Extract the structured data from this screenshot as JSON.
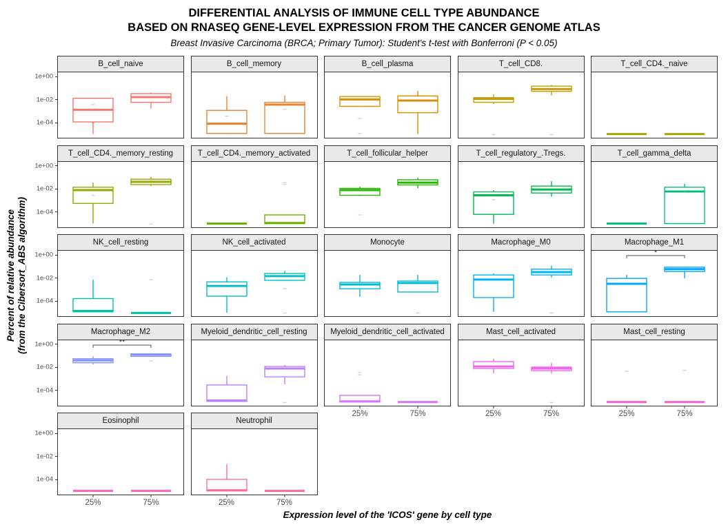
{
  "header": {
    "title_line1": "DIFFERENTIAL ANALYSIS OF IMMUNE CELL TYPE ABUNDANCE",
    "title_line2": "BASED ON RNASEQ GENE-LEVEL EXPRESSION FROM THE CANCER GENOME ATLAS",
    "subtitle": "Breast Invasive Carcinoma (BRCA; Primary Tumor): Student's t-test with Bonferroni (P < 0.05)"
  },
  "axes": {
    "y_label_line1": "Percent of relative abundance",
    "y_label_line2": "(from the Cibersort_ABS algorithm)",
    "x_label": "Expression level of the 'ICOS' gene by cell type",
    "y_tick_labels": [
      "1e+00",
      "1e-02",
      "1e-04"
    ],
    "y_tick_log10": [
      0,
      -2,
      -4
    ],
    "x_tick_labels": [
      "25%",
      "75%"
    ]
  },
  "chart_data": {
    "type": "boxplot",
    "facets": "immune cell types",
    "facet_grid": {
      "columns": 5,
      "rows_layout": [
        5,
        5,
        5,
        5,
        2
      ]
    },
    "x_categories": [
      "25%",
      "75%"
    ],
    "y_scale": "log10",
    "y_axis_ticks": [
      "1e+00",
      "1e-02",
      "1e-04"
    ],
    "values_unit": "log10 of percent relative abundance",
    "panels": [
      {
        "title": "B_cell_naive",
        "color": "#F8766D",
        "significance": null,
        "show_x_axis": false,
        "boxes": [
          {
            "group": "25%",
            "lo": -5.05,
            "q1": -4.0,
            "med": -2.95,
            "q3": -1.95,
            "hi": -1.9
          },
          {
            "group": "75%",
            "lo": -2.85,
            "q1": -2.3,
            "med": -1.85,
            "q3": -1.55,
            "hi": -1.45
          }
        ],
        "dots": [
          {
            "group": "25%",
            "log10": -2.5
          },
          {
            "group": "25%",
            "log10": -4.1
          }
        ]
      },
      {
        "title": "B_cell_memory",
        "color": "#EA8331",
        "significance": null,
        "show_x_axis": false,
        "boxes": [
          {
            "group": "25%",
            "lo": -5.05,
            "q1": -5.0,
            "med": -4.15,
            "q3": -3.0,
            "hi": -1.75
          },
          {
            "group": "75%",
            "lo": -5.0,
            "q1": -5.0,
            "med": -2.5,
            "q3": -2.3,
            "hi": -1.7
          }
        ],
        "dots": [
          {
            "group": "25%",
            "log10": -3.5
          },
          {
            "group": "75%",
            "log10": -2.9
          }
        ]
      },
      {
        "title": "B_cell_plasma",
        "color": "#D99000",
        "significance": null,
        "show_x_axis": false,
        "boxes": [
          {
            "group": "25%",
            "lo": -2.7,
            "q1": -2.65,
            "med": -2.05,
            "q3": -1.8,
            "hi": -1.8
          },
          {
            "group": "75%",
            "lo": -5.05,
            "q1": -3.2,
            "med": -2.15,
            "q3": -1.75,
            "hi": -1.3
          }
        ],
        "dots": [
          {
            "group": "25%",
            "log10": -3.7
          },
          {
            "group": "25%",
            "log10": -5.0
          },
          {
            "group": "75%",
            "log10": -2.2
          }
        ]
      },
      {
        "title": "T_cell_CD8.",
        "color": "#C49A00",
        "significance": null,
        "show_x_axis": false,
        "boxes": [
          {
            "group": "25%",
            "lo": -2.45,
            "q1": -2.3,
            "med": -2.0,
            "q3": -1.9,
            "hi": -1.6
          },
          {
            "group": "75%",
            "lo": -1.7,
            "q1": -1.35,
            "med": -1.15,
            "q3": -0.9,
            "hi": -0.8
          }
        ],
        "dots": [
          {
            "group": "25%",
            "log10": -5.1
          },
          {
            "group": "75%",
            "log10": -5.1
          }
        ]
      },
      {
        "title": "T_cell_CD4._naive",
        "color": "#AEA200",
        "significance": null,
        "show_x_axis": false,
        "boxes": [
          {
            "group": "25%",
            "lo": -5.05,
            "q1": -5.05,
            "med": -5.05,
            "q3": -5.05,
            "hi": -5.05
          },
          {
            "group": "75%",
            "lo": -5.05,
            "q1": -5.05,
            "med": -5.05,
            "q3": -5.05,
            "hi": -5.05
          }
        ],
        "dots": []
      },
      {
        "title": "T_cell_CD4._memory_resting",
        "color": "#95A900",
        "significance": null,
        "show_x_axis": false,
        "boxes": [
          {
            "group": "25%",
            "lo": -5.05,
            "q1": -3.3,
            "med": -2.15,
            "q3": -1.9,
            "hi": -1.5
          },
          {
            "group": "75%",
            "lo": -1.8,
            "q1": -1.67,
            "med": -1.43,
            "q3": -1.2,
            "hi": -1.0
          }
        ],
        "dots": [
          {
            "group": "25%",
            "log10": -2.6
          },
          {
            "group": "75%",
            "log10": -5.1
          }
        ]
      },
      {
        "title": "T_cell_CD4._memory_activated",
        "color": "#68B000",
        "significance": null,
        "show_x_axis": false,
        "boxes": [
          {
            "group": "25%",
            "lo": -5.05,
            "q1": -5.05,
            "med": -5.05,
            "q3": -5.05,
            "hi": -5.05
          },
          {
            "group": "75%",
            "lo": -5.05,
            "q1": -5.05,
            "med": -5.0,
            "q3": -4.3,
            "hi": -4.3
          }
        ],
        "dots": [
          {
            "group": "75%",
            "log10": -1.5
          },
          {
            "group": "75%",
            "log10": -1.65
          }
        ]
      },
      {
        "title": "T_cell_follicular_helper",
        "color": "#24B700",
        "significance": null,
        "show_x_axis": false,
        "boxes": [
          {
            "group": "25%",
            "lo": -2.65,
            "q1": -2.6,
            "med": -2.15,
            "q3": -2.0,
            "hi": -1.85
          },
          {
            "group": "75%",
            "lo": -2.0,
            "q1": -1.7,
            "med": -1.5,
            "q3": -1.25,
            "hi": -1.07
          }
        ],
        "dots": [
          {
            "group": "25%",
            "log10": -4.3
          }
        ]
      },
      {
        "title": "T_cell_regulatory_.Tregs.",
        "color": "#00BB4E",
        "significance": null,
        "show_x_axis": false,
        "boxes": [
          {
            "group": "25%",
            "lo": -5.07,
            "q1": -4.25,
            "med": -2.6,
            "q3": -2.3,
            "hi": -2.15
          },
          {
            "group": "75%",
            "lo": -2.7,
            "q1": -2.4,
            "med": -2.1,
            "q3": -1.8,
            "hi": -1.37
          }
        ],
        "dots": [
          {
            "group": "25%",
            "log10": -3.0
          }
        ]
      },
      {
        "title": "T_cell_gamma_delta",
        "color": "#00BF7C",
        "significance": null,
        "show_x_axis": false,
        "boxes": [
          {
            "group": "25%",
            "lo": -5.05,
            "q1": -5.05,
            "med": -5.05,
            "q3": -5.05,
            "hi": -5.05
          },
          {
            "group": "75%",
            "lo": -5.07,
            "q1": -5.05,
            "med": -2.27,
            "q3": -1.9,
            "hi": -1.6
          }
        ],
        "dots": [
          {
            "group": "75%",
            "log10": -2.3
          }
        ]
      },
      {
        "title": "NK_cell_resting",
        "color": "#00C1A7",
        "significance": null,
        "show_x_axis": false,
        "boxes": [
          {
            "group": "25%",
            "lo": -5.05,
            "q1": -5.0,
            "med": -4.92,
            "q3": -3.85,
            "hi": -2.2
          },
          {
            "group": "75%",
            "lo": -5.1,
            "q1": -5.1,
            "med": -5.1,
            "q3": -5.1,
            "hi": -5.1
          }
        ],
        "dots": [
          {
            "group": "75%",
            "log10": -2.2
          }
        ]
      },
      {
        "title": "NK_cell_activated",
        "color": "#00C0C4",
        "significance": null,
        "show_x_axis": false,
        "boxes": [
          {
            "group": "25%",
            "lo": -5.07,
            "q1": -3.64,
            "med": -2.75,
            "q3": -2.4,
            "hi": -2.0
          },
          {
            "group": "75%",
            "lo": -2.27,
            "q1": -2.27,
            "med": -1.9,
            "q3": -1.67,
            "hi": -1.43
          }
        ],
        "dots": [
          {
            "group": "75%",
            "log10": -3.0
          },
          {
            "group": "75%",
            "log10": -5.1
          }
        ]
      },
      {
        "title": "Monocyte",
        "color": "#00BCD8",
        "significance": null,
        "show_x_axis": false,
        "boxes": [
          {
            "group": "25%",
            "lo": -3.7,
            "q1": -3.0,
            "med": -2.63,
            "q3": -2.45,
            "hi": -1.8
          },
          {
            "group": "75%",
            "lo": -3.28,
            "q1": -3.28,
            "med": -2.5,
            "q3": -2.33,
            "hi": -1.8
          }
        ],
        "dots": [
          {
            "group": "75%",
            "log10": -5.1
          }
        ]
      },
      {
        "title": "Macrophage_M0",
        "color": "#00B3F0",
        "significance": null,
        "show_x_axis": false,
        "boxes": [
          {
            "group": "25%",
            "lo": -5.0,
            "q1": -3.76,
            "med": -2.2,
            "q3": -1.8,
            "hi": -1.67
          },
          {
            "group": "75%",
            "lo": -2.03,
            "q1": -1.8,
            "med": -1.55,
            "q3": -1.3,
            "hi": -1.0
          }
        ],
        "dots": [
          {
            "group": "75%",
            "log10": -5.1
          }
        ]
      },
      {
        "title": "Macrophage_M1",
        "color": "#00A7FF",
        "significance": "*",
        "show_x_axis": false,
        "boxes": [
          {
            "group": "25%",
            "lo": -5.0,
            "q1": -5.0,
            "med": -2.57,
            "q3": -2.1,
            "hi": -1.8
          },
          {
            "group": "75%",
            "lo": -2.1,
            "q1": -1.5,
            "med": -1.3,
            "q3": -1.13,
            "hi": -1.13
          }
        ],
        "dots": []
      },
      {
        "title": "Macrophage_M2",
        "color": "#8493FF",
        "significance": "**",
        "show_x_axis": false,
        "boxes": [
          {
            "group": "25%",
            "lo": -1.8,
            "q1": -1.65,
            "med": -1.45,
            "q3": -1.3,
            "hi": -1.1
          },
          {
            "group": "75%",
            "lo": -1.15,
            "q1": -1.1,
            "med": -0.95,
            "q3": -0.88,
            "hi": -0.88
          }
        ],
        "dots": [
          {
            "group": "75%",
            "log10": -1.5
          }
        ]
      },
      {
        "title": "Myeloid_dendritic_cell_resting",
        "color": "#BA81FF",
        "significance": null,
        "show_x_axis": false,
        "boxes": [
          {
            "group": "25%",
            "lo": -5.05,
            "q1": -5.0,
            "med": -4.92,
            "q3": -3.58,
            "hi": -2.8
          },
          {
            "group": "75%",
            "lo": -3.52,
            "q1": -2.87,
            "med": -2.15,
            "q3": -1.97,
            "hi": -1.85
          }
        ],
        "dots": [
          {
            "group": "75%",
            "log10": -5.1
          }
        ]
      },
      {
        "title": "Myeloid_dendritic_cell_activated",
        "color": "#DB72FB",
        "significance": null,
        "show_x_axis": true,
        "boxes": [
          {
            "group": "25%",
            "lo": -5.05,
            "q1": -5.05,
            "med": -5.0,
            "q3": -4.48,
            "hi": -4.48
          },
          {
            "group": "75%",
            "lo": -5.05,
            "q1": -5.05,
            "med": -5.05,
            "q3": -5.05,
            "hi": -5.05
          }
        ],
        "dots": [
          {
            "group": "25%",
            "log10": -2.5
          },
          {
            "group": "25%",
            "log10": -2.7
          }
        ]
      },
      {
        "title": "Mast_cell_activated",
        "color": "#EE67EC",
        "significance": null,
        "show_x_axis": true,
        "boxes": [
          {
            "group": "25%",
            "lo": -2.57,
            "q1": -2.15,
            "med": -1.97,
            "q3": -1.55,
            "hi": -1.3
          },
          {
            "group": "75%",
            "lo": -2.57,
            "q1": -2.33,
            "med": -2.15,
            "q3": -2.03,
            "hi": -1.67
          }
        ],
        "dots": [
          {
            "group": "75%",
            "log10": -5.1
          }
        ]
      },
      {
        "title": "Mast_cell_resting",
        "color": "#FB61D7",
        "significance": null,
        "show_x_axis": true,
        "boxes": [
          {
            "group": "25%",
            "lo": -5.05,
            "q1": -5.05,
            "med": -5.05,
            "q3": -5.05,
            "hi": -5.05
          },
          {
            "group": "75%",
            "lo": -5.05,
            "q1": -5.05,
            "med": -5.05,
            "q3": -5.05,
            "hi": -5.05
          }
        ],
        "dots": [
          {
            "group": "25%",
            "log10": -2.4
          },
          {
            "group": "75%",
            "log10": -2.3
          }
        ]
      },
      {
        "title": "Eosinophil",
        "color": "#FF62BB",
        "significance": null,
        "show_x_axis": true,
        "boxes": [
          {
            "group": "25%",
            "lo": -5.05,
            "q1": -5.05,
            "med": -5.05,
            "q3": -5.05,
            "hi": -5.05
          },
          {
            "group": "75%",
            "lo": -5.05,
            "q1": -5.05,
            "med": -5.05,
            "q3": -5.05,
            "hi": -5.05
          }
        ],
        "dots": []
      },
      {
        "title": "Neutrophil",
        "color": "#FF6B94",
        "significance": null,
        "show_x_axis": true,
        "boxes": [
          {
            "group": "25%",
            "lo": -5.05,
            "q1": -5.05,
            "med": -5.0,
            "q3": -4.06,
            "hi": -2.75
          },
          {
            "group": "75%",
            "lo": -5.05,
            "q1": -5.05,
            "med": -5.05,
            "q3": -5.05,
            "hi": -5.05
          }
        ],
        "dots": []
      }
    ]
  }
}
